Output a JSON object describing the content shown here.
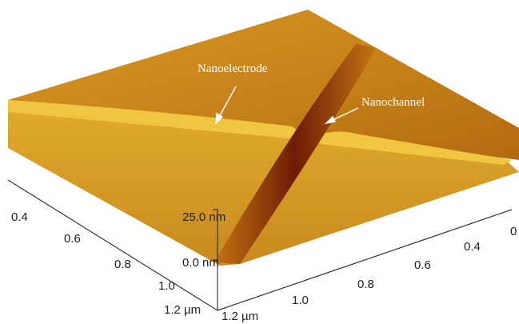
{
  "annotations": {
    "electrode": "Nanoelectrode",
    "channel": "Nanochannel"
  },
  "z_axis": {
    "top": "25.0 nm",
    "bottom": "0.0 nm"
  },
  "left_axis": {
    "ticks": [
      "0.4",
      "0.6",
      "0.8",
      "1.0",
      "1.2 µm"
    ]
  },
  "right_axis": {
    "ticks": [
      "1.2 µm",
      "1.0",
      "0.8",
      "0.6",
      "0.4",
      "0"
    ]
  }
}
